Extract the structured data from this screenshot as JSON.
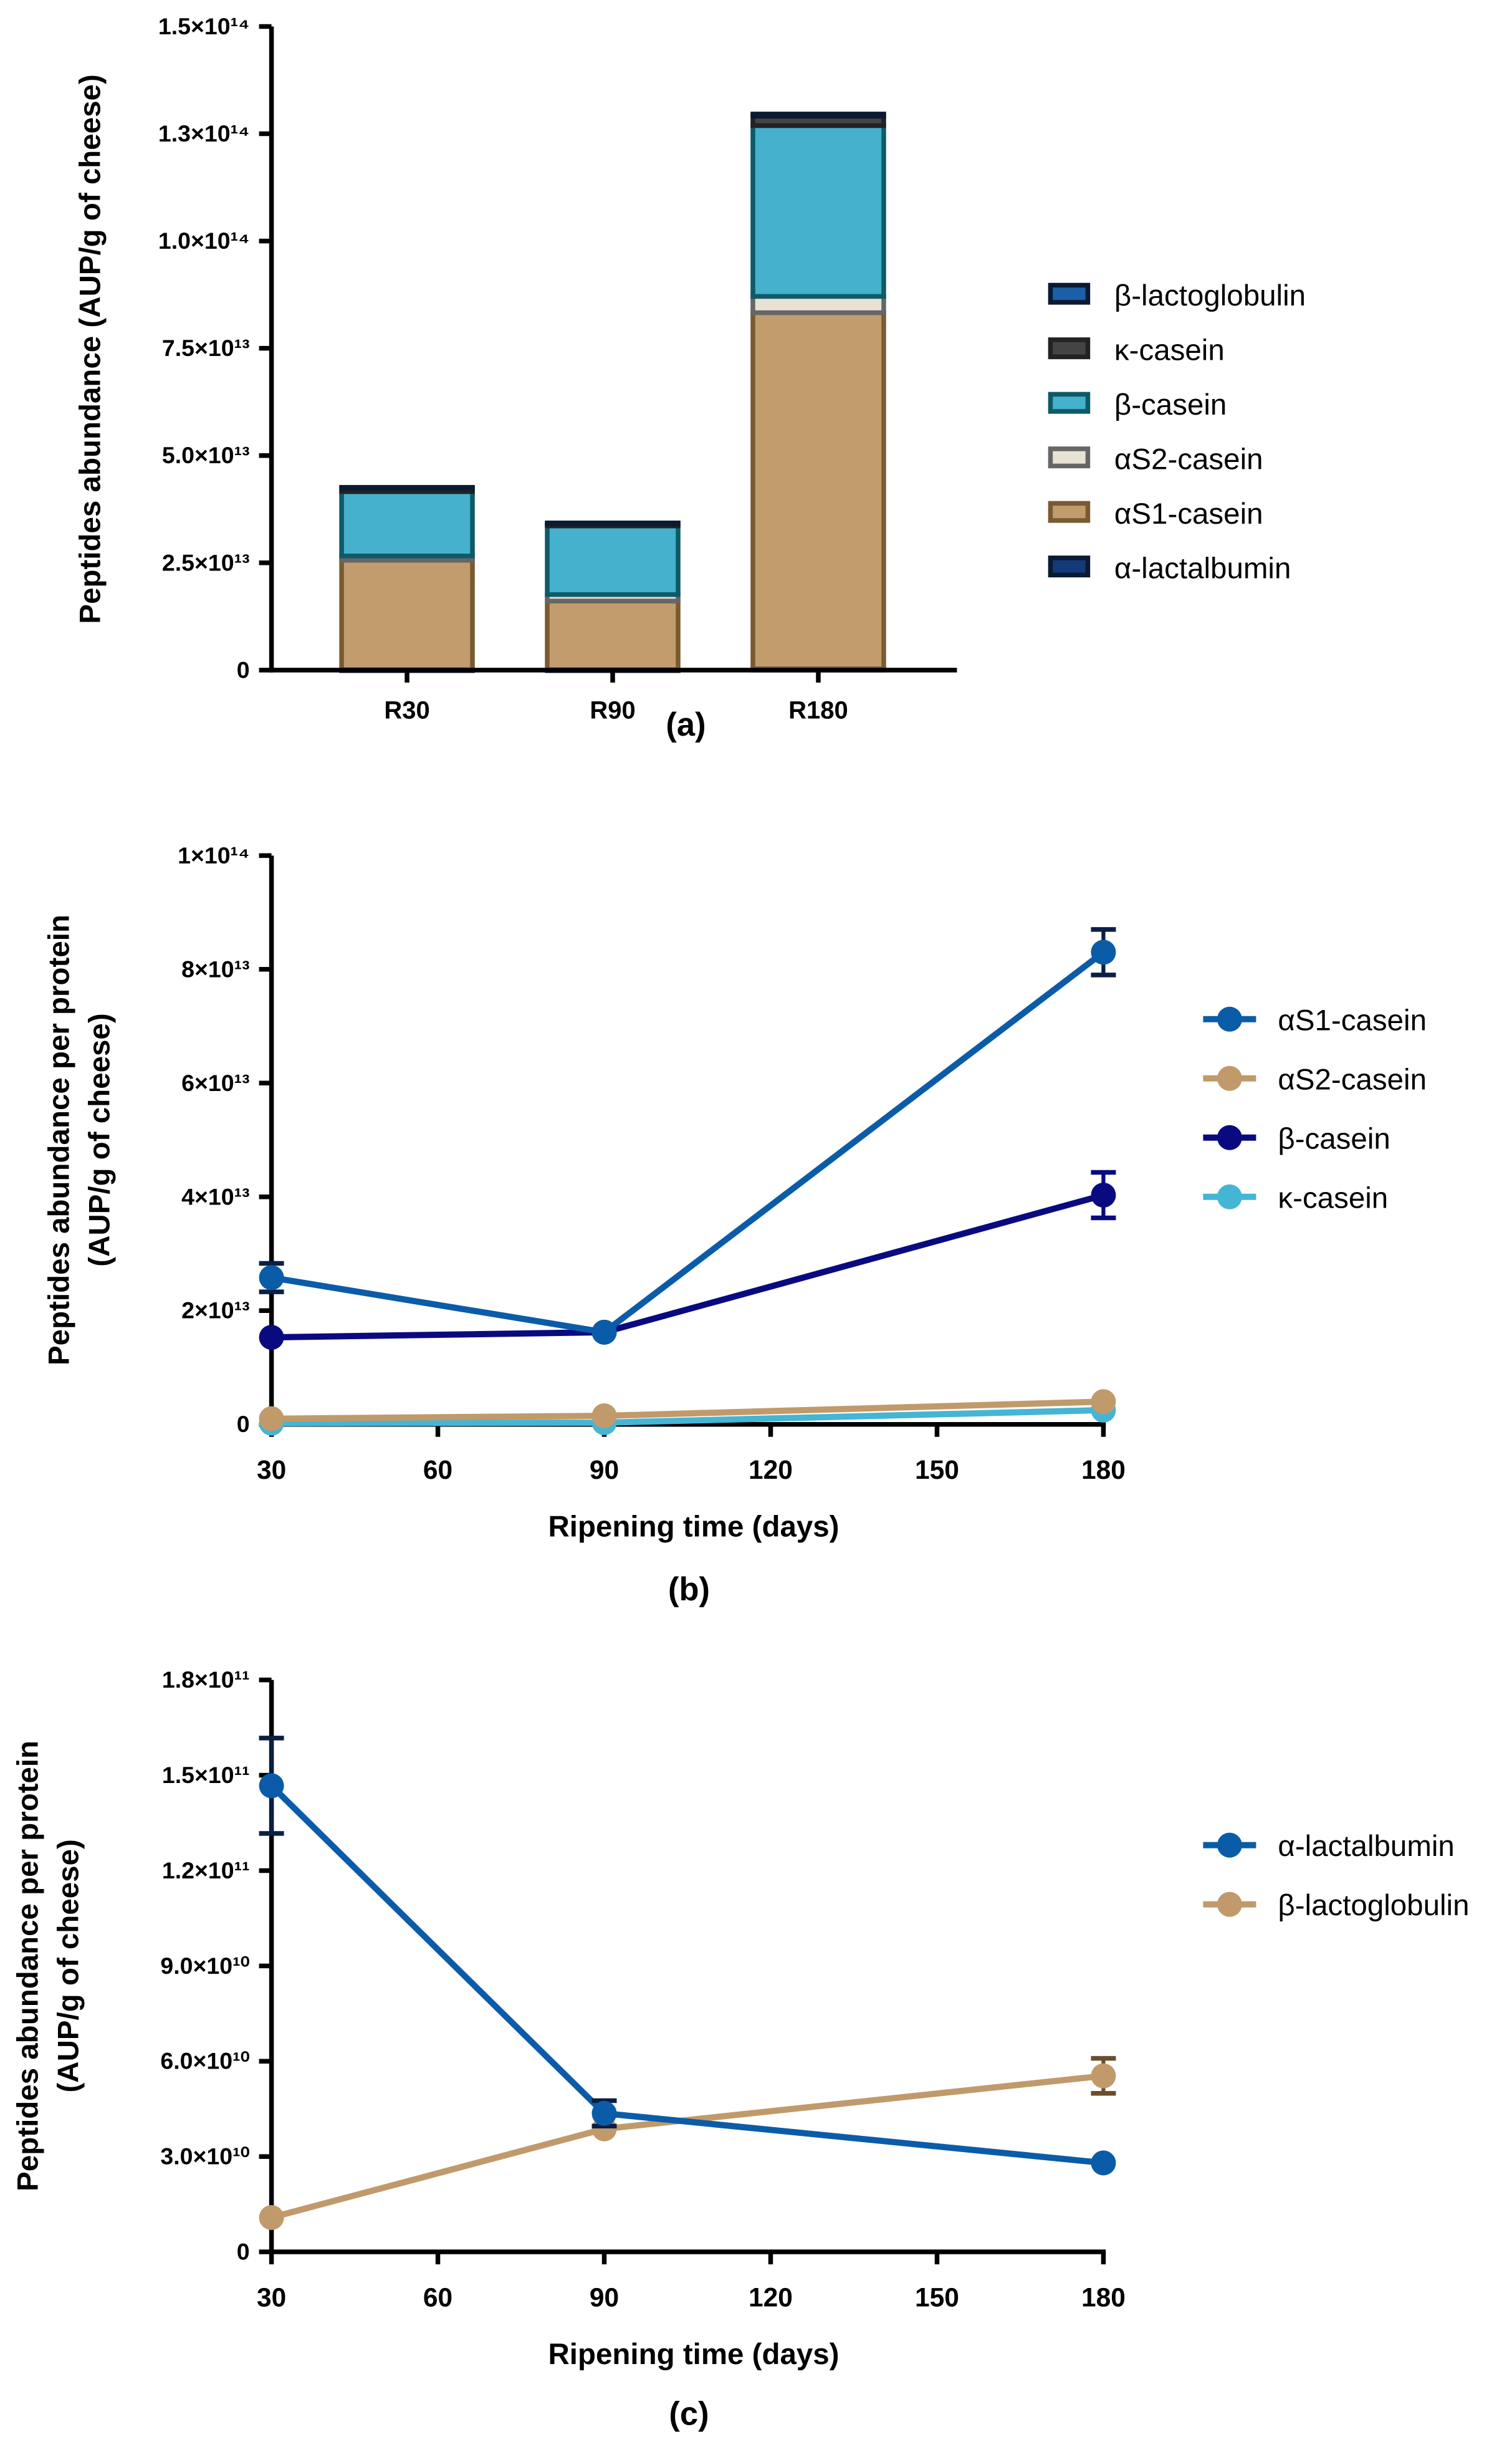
{
  "chart_data": [
    {
      "panel_label": "(a)",
      "type": "bar",
      "stacked": true,
      "categories": [
        "R30",
        "R90",
        "R180"
      ],
      "ylabel": "Peptides abundance (AUP/g of cheese)",
      "xlabel": "",
      "ylim": [
        0,
        150000000000000.0
      ],
      "yticks": [
        0,
        25000000000000.0,
        50000000000000.0,
        75000000000000.0,
        100000000000000.0,
        125000000000000.0,
        150000000000000.0
      ],
      "ytick_labels": [
        "0",
        "2.5×10¹³",
        "5.0×10¹³",
        "7.5×10¹³",
        "1.0×10¹⁴",
        "1.3×10¹⁴",
        "1.5×10¹⁴"
      ],
      "legend_position": "right",
      "legend_order": [
        "β-lactoglobulin",
        "κ-casein",
        "β-casein",
        "αS2-casein",
        "αS1-casein",
        "α-lactalbumin"
      ],
      "series": [
        {
          "name": "α-lactalbumin",
          "fill": "#123a78",
          "stroke": "#0a1a33",
          "values": [
            100000000000.0,
            100000000000.0,
            300000000000.0
          ]
        },
        {
          "name": "αS1-casein",
          "fill": "#c19d6e",
          "stroke": "#7a5a30",
          "values": [
            25500000000000.0,
            16000000000000.0,
            83000000000000.0
          ]
        },
        {
          "name": "αS2-casein",
          "fill": "#e8e2d4",
          "stroke": "#666666",
          "values": [
            1000000000000.0,
            1500000000000.0,
            3800000000000.0
          ]
        },
        {
          "name": "β-casein",
          "fill": "#45b1cc",
          "stroke": "#0e5a68",
          "values": [
            15000000000000.0,
            16000000000000.0,
            39800000000000.0
          ]
        },
        {
          "name": "κ-casein",
          "fill": "#444444",
          "stroke": "#222222",
          "values": [
            800000000000.0,
            500000000000.0,
            2200000000000.0
          ]
        },
        {
          "name": "β-lactoglobulin",
          "fill": "#1a5fa8",
          "stroke": "#0a1a33",
          "values": [
            200000000000.0,
            200000000000.0,
            500000000000.0
          ]
        }
      ]
    },
    {
      "panel_label": "(b)",
      "type": "line",
      "x": [
        30,
        90,
        180
      ],
      "xlim": [
        30,
        180
      ],
      "xticks": [
        30,
        60,
        90,
        120,
        150,
        180
      ],
      "xlabel": "Ripening time (days)",
      "ylabel": [
        "Peptides abundance per protein",
        "(AUP/g of cheese)"
      ],
      "ylim": [
        0,
        100000000000000.0
      ],
      "yticks": [
        0,
        20000000000000.0,
        40000000000000.0,
        60000000000000.0,
        80000000000000.0,
        100000000000000.0
      ],
      "ytick_labels": [
        "0",
        "2×10¹³",
        "4×10¹³",
        "6×10¹³",
        "8×10¹³",
        "1×10¹⁴"
      ],
      "legend_position": "right",
      "series": [
        {
          "name": "κ-casein",
          "color": "#45b5d4",
          "values": [
            200000000000.0,
            300000000000.0,
            2500000000000.0
          ],
          "errors": [
            0,
            0,
            0
          ]
        },
        {
          "name": "αS2-casein",
          "color": "#c09a6b",
          "values": [
            1000000000000.0,
            1500000000000.0,
            4000000000000.0
          ],
          "errors": [
            0,
            0,
            0
          ]
        },
        {
          "name": "β-casein",
          "color": "#0a0a80",
          "values": [
            15300000000000.0,
            16200000000000.0,
            40300000000000.0
          ],
          "errors": [
            0,
            0,
            4000000000000.0
          ]
        },
        {
          "name": "αS1-casein",
          "color": "#0b5ca8",
          "values": [
            25800000000000.0,
            16200000000000.0,
            83000000000000.0
          ],
          "errors": [
            2500000000000.0,
            0,
            4000000000000.0
          ]
        }
      ],
      "legend_order": [
        "αS1-casein",
        "αS2-casein",
        "β-casein",
        "κ-casein"
      ]
    },
    {
      "panel_label": "(c)",
      "type": "line",
      "x": [
        30,
        90,
        180
      ],
      "xlim": [
        30,
        180
      ],
      "xticks": [
        30,
        60,
        90,
        120,
        150,
        180
      ],
      "xlabel": "Ripening time (days)",
      "ylabel": [
        "Peptides abundance per protein",
        "(AUP/g of cheese)"
      ],
      "ylim": [
        0,
        180000000000.0
      ],
      "yticks": [
        0,
        30000000000.0,
        60000000000.0,
        90000000000.0,
        120000000000.0,
        150000000000.0,
        180000000000.0
      ],
      "ytick_labels": [
        "0",
        "3.0×10¹⁰",
        "6.0×10¹⁰",
        "9.0×10¹⁰",
        "1.2×10¹¹",
        "1.5×10¹¹",
        "1.8×10¹¹"
      ],
      "legend_position": "right",
      "series": [
        {
          "name": "β-lactoglobulin",
          "color": "#c09a6b",
          "values": [
            10800000000.0,
            38700000000.0,
            55400000000.0
          ],
          "errors": [
            0,
            0,
            5500000000.0
          ]
        },
        {
          "name": "α-lactalbumin",
          "color": "#0b5ca8",
          "values": [
            146700000000.0,
            43600000000.0,
            28000000000.0
          ],
          "errors": [
            15000000000.0,
            4000000000.0,
            0
          ]
        }
      ],
      "legend_order": [
        "α-lactalbumin",
        "β-lactoglobulin"
      ]
    }
  ]
}
